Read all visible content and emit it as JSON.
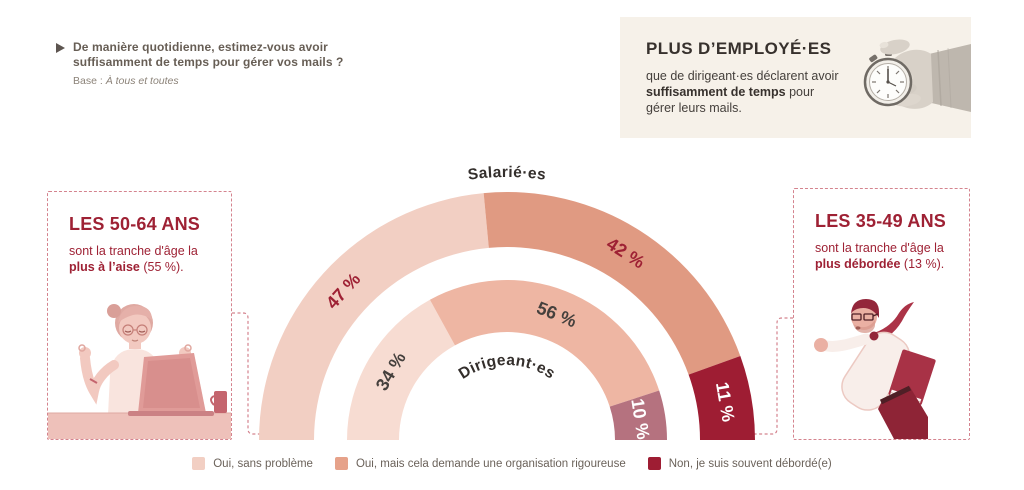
{
  "question": {
    "line1": "De manière quotidienne, estimez-vous avoir",
    "line2": "suffisamment de temps pour gérer vos mails ?",
    "base_prefix": "Base : ",
    "base_detail": "À tous et toutes"
  },
  "highlight": {
    "title": "PLUS D’EMPLOYÉ·ES",
    "body_start": "que de dirigeant·es déclarent avoir ",
    "body_bold": "suffisamment de temps",
    "body_end": " pour gérer leurs mails.",
    "image": "hand-holding-stopwatch",
    "background": "#f6f1e9"
  },
  "callout_left": {
    "title": "LES 50-64 ANS",
    "body_line": "sont la tranche d'âge la",
    "body_bold": "plus à l’aise",
    "body_end": " (55 %).",
    "image": "woman-meditating-at-laptop"
  },
  "callout_right": {
    "title": "LES 35-49 ANS",
    "body_line": "sont la tranche d'âge la",
    "body_bold": "plus débordée",
    "body_end": " (13 %).",
    "image": "man-rushing-with-files"
  },
  "chart_data": {
    "type": "semi_donut",
    "unit": "%",
    "rings": [
      {
        "name": "Salarié·es",
        "values": [
          47,
          42,
          11
        ]
      },
      {
        "name": "Dirigeant·es",
        "values": [
          34,
          56,
          10
        ]
      }
    ],
    "categories": [
      "Oui, sans problème",
      "Oui, mais cela demande une organisation rigoureuse",
      "Non, je suis souvent débordé(e)"
    ],
    "colors": {
      "outer_segments": [
        "#f2cfc3",
        "#e09a82",
        "#9e1d33"
      ],
      "inner_segments": [
        "#f7dcd2",
        "#eeb6a3",
        "#b5727f"
      ],
      "legend_swatches": [
        "#f2cfc3",
        "#e6a28a",
        "#9e1d33"
      ],
      "outer_label_colors": [
        "#9e2134",
        "#9e2134",
        "#ffffff"
      ],
      "inner_label_colors": [
        "#45403d",
        "#45403d",
        "#ffffff"
      ]
    },
    "legend_position": "bottom",
    "accent_color": "#9e2134"
  }
}
